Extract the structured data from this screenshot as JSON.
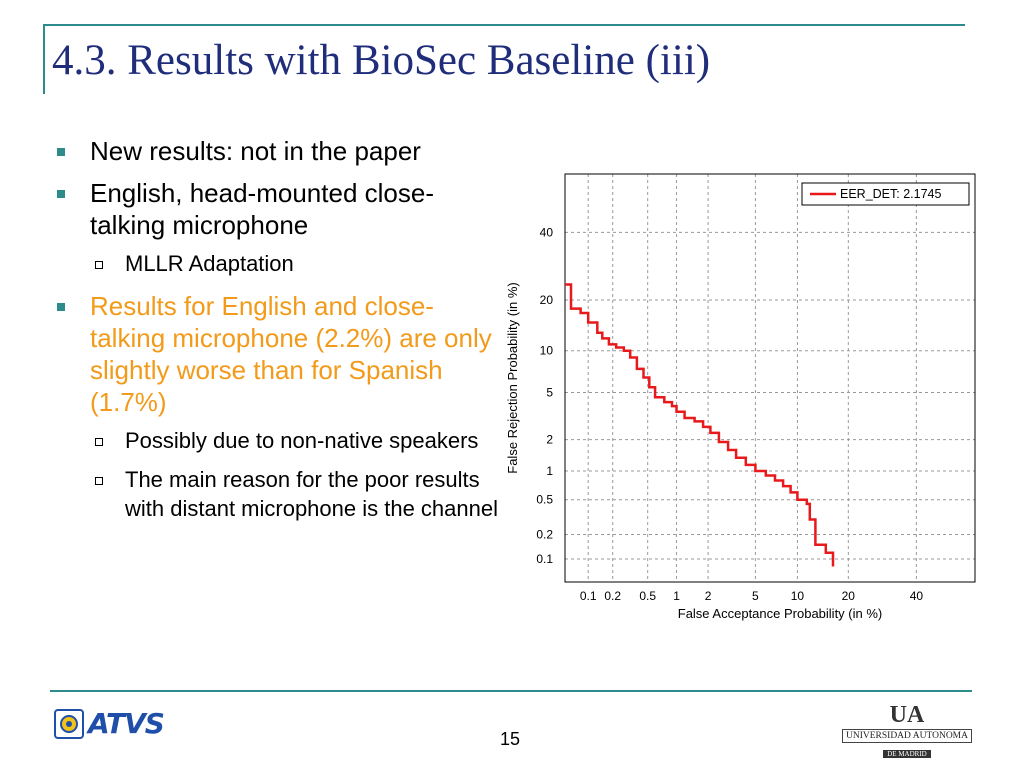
{
  "slide": {
    "title": "4.3. Results with BioSec Baseline (iii)",
    "page_number": "15",
    "accent_color": "#2e8b8b",
    "title_color": "#1f2d7a",
    "highlight_color": "#f29a1a"
  },
  "bullets": {
    "b1": "New results: not in the paper",
    "b2": "English, head-mounted close-talking microphone",
    "b2_sub1": "MLLR Adaptation",
    "b3": "Results for English and close-talking microphone (2.2%) are only slightly worse than for Spanish (1.7%)",
    "b3_sub1": "Possibly due to non-native speakers",
    "b3_sub2": "The main reason for the poor results with distant microphone is the channel"
  },
  "logos": {
    "left": "ATVS",
    "right_top": "UA",
    "right_name": "UNIVERSIDAD AUTONOMA",
    "right_sub": "DE MADRID"
  },
  "chart_data": {
    "type": "line",
    "subtype": "DET curve",
    "xlabel": "False Acceptance Probability (in %)",
    "ylabel": "False Rejection Probability (in %)",
    "x_ticks": [
      "0.1",
      "0.2",
      "0.5",
      "1",
      "2",
      "5",
      "10",
      "20",
      "40"
    ],
    "y_ticks": [
      "0.1",
      "0.2",
      "0.5",
      "1",
      "2",
      "5",
      "10",
      "20",
      "40"
    ],
    "scale": "normal deviate (probit)",
    "grid": true,
    "legend_position": "top-right",
    "series": [
      {
        "name": "EER_DET: 2.1745",
        "color": "#e8191b",
        "points": [
          [
            0.05,
            24
          ],
          [
            0.06,
            18
          ],
          [
            0.08,
            17
          ],
          [
            0.1,
            15
          ],
          [
            0.13,
            13
          ],
          [
            0.15,
            12
          ],
          [
            0.18,
            11
          ],
          [
            0.22,
            10.5
          ],
          [
            0.27,
            10
          ],
          [
            0.32,
            9
          ],
          [
            0.38,
            7.5
          ],
          [
            0.45,
            6.5
          ],
          [
            0.52,
            5.5
          ],
          [
            0.6,
            4.6
          ],
          [
            0.75,
            4.2
          ],
          [
            0.9,
            3.9
          ],
          [
            1.0,
            3.5
          ],
          [
            1.2,
            3.1
          ],
          [
            1.5,
            2.9
          ],
          [
            1.8,
            2.6
          ],
          [
            2.1,
            2.3
          ],
          [
            2.5,
            1.9
          ],
          [
            3.0,
            1.6
          ],
          [
            3.5,
            1.35
          ],
          [
            4.2,
            1.15
          ],
          [
            5.0,
            1.0
          ],
          [
            6.0,
            0.9
          ],
          [
            7.0,
            0.8
          ],
          [
            8.0,
            0.7
          ],
          [
            9.0,
            0.6
          ],
          [
            10.0,
            0.5
          ],
          [
            11.5,
            0.45
          ],
          [
            12.0,
            0.3
          ],
          [
            13.0,
            0.15
          ],
          [
            15.0,
            0.12
          ],
          [
            16.5,
            0.08
          ]
        ]
      }
    ]
  }
}
